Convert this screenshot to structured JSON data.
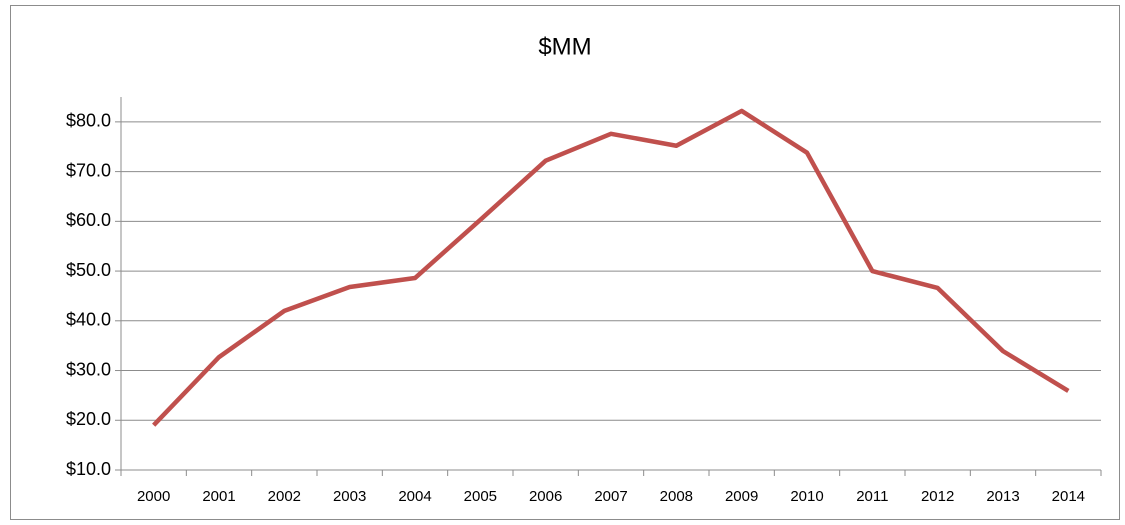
{
  "chart_data": {
    "type": "line",
    "title": "$MM",
    "categories": [
      "2000",
      "2001",
      "2002",
      "2003",
      "2004",
      "2005",
      "2006",
      "2007",
      "2008",
      "2009",
      "2010",
      "2011",
      "2012",
      "2013",
      "2014"
    ],
    "series": [
      {
        "name": "$MM",
        "color": "#c0504d",
        "values": [
          19.0,
          32.7,
          42.0,
          46.8,
          48.6,
          60.3,
          72.2,
          77.6,
          75.2,
          82.2,
          73.8,
          50.0,
          46.6,
          33.9,
          25.9
        ]
      }
    ],
    "ylim": [
      10,
      85
    ],
    "yticks": [
      {
        "value": 10,
        "label": "$10.0"
      },
      {
        "value": 20,
        "label": "$20.0"
      },
      {
        "value": 30,
        "label": "$30.0"
      },
      {
        "value": 40,
        "label": "$40.0"
      },
      {
        "value": 50,
        "label": "$50.0"
      },
      {
        "value": 60,
        "label": "$60.0"
      },
      {
        "value": 70,
        "label": "$70.0"
      },
      {
        "value": 80,
        "label": "$80.0"
      }
    ],
    "grid": true,
    "legend": false
  }
}
